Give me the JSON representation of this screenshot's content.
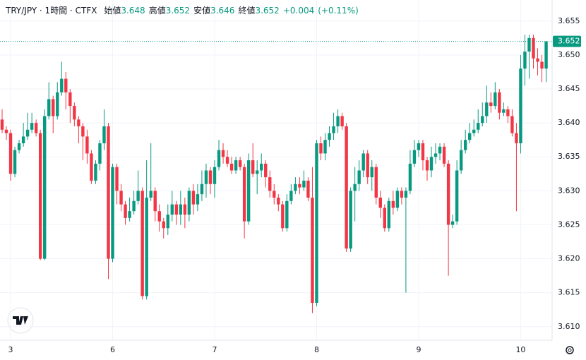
{
  "chart_data": {
    "type": "candlestick",
    "title": "TRY/JPY · 1時間 · CTFX",
    "header": [
      {
        "label": "始値",
        "value": "3.648"
      },
      {
        "label": "高値",
        "value": "3.652"
      },
      {
        "label": "安値",
        "value": "3.646"
      },
      {
        "label": "終値",
        "value": "3.652"
      }
    ],
    "change": "+0.004",
    "change_pct": "(+0.11%)",
    "last": 3.652,
    "up_color": "#089981",
    "down_color": "#f23645",
    "grid": true,
    "ylim": [
      3.608,
      3.6581
    ],
    "yticks": [
      {
        "value": 3.61,
        "label": "3.610"
      },
      3.615,
      {
        "value": 3.62,
        "label": "3.620"
      },
      3.625,
      {
        "value": 3.63,
        "label": "3.630"
      },
      3.635,
      {
        "value": 3.64,
        "label": "3.640"
      },
      3.645,
      {
        "value": 3.65,
        "label": "3.650"
      },
      3.655
    ],
    "categories": [
      null,
      null,
      "3",
      null,
      null,
      null,
      null,
      null,
      null,
      null,
      null,
      null,
      null,
      null,
      null,
      null,
      null,
      null,
      null,
      null,
      null,
      null,
      null,
      null,
      null,
      null,
      "6",
      null,
      null,
      null,
      null,
      null,
      null,
      null,
      null,
      null,
      null,
      null,
      null,
      null,
      null,
      null,
      null,
      null,
      null,
      null,
      null,
      null,
      null,
      null,
      "7",
      null,
      null,
      null,
      null,
      null,
      null,
      null,
      null,
      null,
      null,
      null,
      null,
      null,
      null,
      null,
      null,
      null,
      null,
      null,
      null,
      null,
      null,
      null,
      "8",
      null,
      null,
      null,
      null,
      null,
      null,
      null,
      null,
      null,
      null,
      null,
      null,
      null,
      null,
      null,
      null,
      null,
      null,
      null,
      null,
      null,
      null,
      null,
      "9",
      null,
      null,
      null,
      null,
      null,
      null,
      null,
      null,
      null,
      null,
      null,
      null,
      null,
      null,
      null,
      null,
      null,
      null,
      null,
      null,
      null,
      null,
      null,
      "10",
      null,
      null,
      null,
      null,
      null,
      null
    ],
    "open": [
      3.6405,
      3.639,
      3.6385,
      3.6325,
      3.636,
      3.637,
      3.638,
      3.639,
      3.64,
      3.6385,
      3.62,
      3.641,
      3.6435,
      3.641,
      3.6445,
      3.6465,
      3.6445,
      3.6425,
      3.6405,
      3.6395,
      3.638,
      3.6355,
      3.6315,
      3.634,
      3.637,
      3.6395,
      3.62,
      3.6335,
      3.63,
      3.628,
      3.626,
      3.627,
      3.6285,
      3.63,
      3.6145,
      3.629,
      3.63,
      3.627,
      3.6255,
      3.6245,
      3.6265,
      3.628,
      3.6265,
      3.628,
      3.6265,
      3.63,
      3.628,
      3.6295,
      3.631,
      3.633,
      3.631,
      3.6335,
      3.636,
      3.635,
      3.634,
      3.633,
      3.6345,
      3.6335,
      3.6255,
      3.6345,
      3.6325,
      3.633,
      3.634,
      3.632,
      3.63,
      3.629,
      3.628,
      3.6245,
      3.6285,
      3.63,
      3.631,
      3.6305,
      3.6315,
      3.629,
      3.6135,
      3.637,
      3.6355,
      3.6375,
      3.6385,
      3.6395,
      3.641,
      3.6395,
      3.6215,
      3.63,
      3.631,
      3.633,
      3.6355,
      3.632,
      3.6335,
      3.629,
      3.6275,
      3.6245,
      3.6285,
      3.6275,
      3.63,
      3.629,
      3.63,
      3.634,
      3.636,
      3.637,
      3.6345,
      3.633,
      3.635,
      3.6355,
      3.6365,
      3.634,
      3.625,
      3.6255,
      3.633,
      3.636,
      3.6375,
      3.6385,
      3.639,
      3.64,
      3.641,
      3.643,
      3.6425,
      3.6445,
      3.6415,
      3.642,
      3.641,
      3.6385,
      3.637,
      3.648,
      3.6505,
      3.6525,
      3.6495,
      3.649,
      3.648
    ],
    "high": [
      3.642,
      3.6395,
      3.639,
      3.6365,
      3.6375,
      3.64,
      3.6415,
      3.6415,
      3.6405,
      3.639,
      3.642,
      3.646,
      3.644,
      3.646,
      3.649,
      3.6475,
      3.645,
      3.643,
      3.641,
      3.64,
      3.639,
      3.636,
      3.6345,
      3.6375,
      3.642,
      3.64,
      3.634,
      3.634,
      3.631,
      3.6285,
      3.629,
      3.63,
      3.633,
      3.6305,
      3.6345,
      3.637,
      3.6305,
      3.628,
      3.626,
      3.628,
      3.63,
      3.6285,
      3.63,
      3.629,
      3.6305,
      3.631,
      3.631,
      3.633,
      3.634,
      3.6335,
      3.6345,
      3.6375,
      3.637,
      3.636,
      3.635,
      3.635,
      3.635,
      3.634,
      3.6355,
      3.637,
      3.6345,
      3.6355,
      3.6345,
      3.633,
      3.631,
      3.6295,
      3.6285,
      3.6295,
      3.631,
      3.632,
      3.632,
      3.633,
      3.632,
      3.6335,
      3.6375,
      3.638,
      3.6385,
      3.6395,
      3.6415,
      3.642,
      3.6415,
      3.64,
      3.6305,
      3.6335,
      3.6345,
      3.636,
      3.636,
      3.6345,
      3.634,
      3.63,
      3.628,
      3.629,
      3.63,
      3.6305,
      3.6305,
      3.6305,
      3.636,
      3.6375,
      3.6375,
      3.6375,
      3.635,
      3.6365,
      3.637,
      3.637,
      3.637,
      3.6345,
      3.6265,
      3.6345,
      3.6375,
      3.639,
      3.64,
      3.6405,
      3.642,
      3.643,
      3.6455,
      3.6445,
      3.646,
      3.645,
      3.643,
      3.6425,
      3.642,
      3.64,
      3.65,
      3.653,
      3.653,
      3.653,
      3.651,
      3.65,
      3.652
    ],
    "low": [
      3.6385,
      3.6375,
      3.6315,
      3.632,
      3.6355,
      3.6365,
      3.6375,
      3.6385,
      3.638,
      3.6198,
      3.6198,
      3.6405,
      3.6385,
      3.6405,
      3.644,
      3.642,
      3.64,
      3.6395,
      3.637,
      3.6345,
      3.634,
      3.631,
      3.631,
      3.633,
      3.636,
      3.617,
      3.6195,
      3.628,
      3.627,
      3.625,
      3.6255,
      3.6265,
      3.628,
      3.614,
      3.614,
      3.6285,
      3.6255,
      3.624,
      3.623,
      3.6235,
      3.6255,
      3.625,
      3.625,
      3.6245,
      3.6255,
      3.6265,
      3.627,
      3.6285,
      3.629,
      3.6295,
      3.629,
      3.633,
      3.634,
      3.6335,
      3.6325,
      3.6325,
      3.633,
      3.623,
      3.625,
      3.632,
      3.6295,
      3.632,
      3.6305,
      3.629,
      3.628,
      3.627,
      3.624,
      3.624,
      3.628,
      3.6295,
      3.6295,
      3.63,
      3.6285,
      3.612,
      3.613,
      3.6345,
      3.6345,
      3.6365,
      3.6375,
      3.6385,
      3.639,
      3.621,
      3.621,
      3.6255,
      3.63,
      3.632,
      3.631,
      3.63,
      3.628,
      3.626,
      3.624,
      3.624,
      3.6265,
      3.627,
      3.628,
      3.615,
      3.6295,
      3.6335,
      3.635,
      3.633,
      3.6315,
      3.632,
      3.634,
      3.6345,
      3.6335,
      3.6175,
      3.6245,
      3.625,
      3.6325,
      3.6355,
      3.637,
      3.638,
      3.6385,
      3.6395,
      3.64,
      3.6415,
      3.642,
      3.6405,
      3.641,
      3.64,
      3.638,
      3.627,
      3.6355,
      3.6455,
      3.6465,
      3.648,
      3.647,
      3.646,
      3.646
    ],
    "close": [
      3.639,
      3.6385,
      3.6325,
      3.636,
      3.637,
      3.638,
      3.639,
      3.64,
      3.6385,
      3.62,
      3.641,
      3.6435,
      3.641,
      3.6445,
      3.6465,
      3.6445,
      3.6425,
      3.6405,
      3.6395,
      3.638,
      3.6355,
      3.6315,
      3.634,
      3.637,
      3.6395,
      3.62,
      3.6335,
      3.63,
      3.628,
      3.626,
      3.627,
      3.6285,
      3.63,
      3.6145,
      3.629,
      3.63,
      3.627,
      3.6255,
      3.6245,
      3.6265,
      3.628,
      3.6265,
      3.628,
      3.6265,
      3.63,
      3.628,
      3.6295,
      3.631,
      3.633,
      3.631,
      3.6335,
      3.636,
      3.635,
      3.634,
      3.633,
      3.6345,
      3.6335,
      3.6255,
      3.6345,
      3.6325,
      3.633,
      3.634,
      3.632,
      3.63,
      3.629,
      3.628,
      3.6245,
      3.6285,
      3.63,
      3.631,
      3.6305,
      3.6315,
      3.629,
      3.6135,
      3.637,
      3.6355,
      3.6375,
      3.6385,
      3.6395,
      3.641,
      3.6395,
      3.6215,
      3.63,
      3.631,
      3.633,
      3.6355,
      3.632,
      3.6335,
      3.629,
      3.6275,
      3.6245,
      3.6285,
      3.6275,
      3.63,
      3.629,
      3.63,
      3.634,
      3.636,
      3.637,
      3.6345,
      3.633,
      3.635,
      3.6355,
      3.6365,
      3.634,
      3.625,
      3.6255,
      3.633,
      3.636,
      3.6375,
      3.6385,
      3.639,
      3.64,
      3.641,
      3.643,
      3.6425,
      3.6445,
      3.6415,
      3.642,
      3.641,
      3.6385,
      3.637,
      3.648,
      3.6505,
      3.6525,
      3.6495,
      3.649,
      3.648,
      3.652
    ]
  }
}
